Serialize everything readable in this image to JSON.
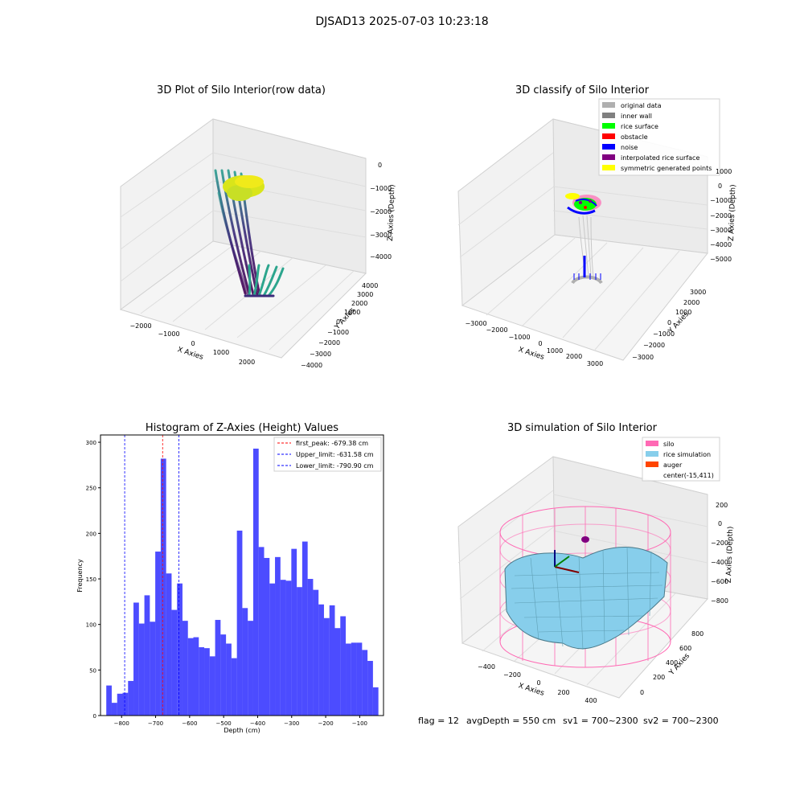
{
  "figure": {
    "suptitle": "DJSAD13 2025-07-03 10:23:18",
    "footer": {
      "flag": "flag = 12",
      "avg_depth": "avgDepth = 550 cm",
      "sv1": "sv1 = 700~2300",
      "sv2": "sv2 = 700~2300"
    }
  },
  "chart_data": [
    {
      "type": "scatter3d",
      "title": "3D Plot of Silo Interior(row data)",
      "xlabel": "X Axies",
      "ylabel": "Y Axies",
      "zlabel": "Z Axies (Depth)",
      "x_ticks": [
        "−2000",
        "−1000",
        "0",
        "1000",
        "2000"
      ],
      "y_ticks": [
        "−4000",
        "−3000",
        "−2000",
        "−1000",
        "0",
        "1000",
        "2000",
        "3000",
        "4000"
      ],
      "z_ticks": [
        "0",
        "−1000",
        "−2000",
        "−3000",
        "−4000"
      ],
      "colormap": "viridis"
    },
    {
      "type": "scatter3d",
      "title": "3D classify of Silo Interior",
      "xlabel": "X Axies",
      "ylabel": "Y Axies",
      "zlabel": "Z Axies (Depth)",
      "x_ticks": [
        "−3000",
        "−2000",
        "−1000",
        "0",
        "1000",
        "2000",
        "3000"
      ],
      "y_ticks": [
        "−3000",
        "−2000",
        "−1000",
        "0",
        "1000",
        "2000",
        "3000"
      ],
      "z_ticks": [
        "1000",
        "0",
        "−1000",
        "−2000",
        "−3000",
        "−4000",
        "−5000"
      ],
      "legend": [
        {
          "label": "original data",
          "color": "#b0b0b0"
        },
        {
          "label": "inner wall",
          "color": "#808080"
        },
        {
          "label": "rice surface",
          "color": "#00ff00"
        },
        {
          "label": "obstacle",
          "color": "#ff0000"
        },
        {
          "label": "noise",
          "color": "#0000ff"
        },
        {
          "label": "interpolated rice surface",
          "color": "#800080"
        },
        {
          "label": "symmetric generated points",
          "color": "#ffff00"
        }
      ]
    },
    {
      "type": "bar",
      "title": "Histogram of Z-Axies (Height) Values",
      "xlabel": "Depth (cm)",
      "ylabel": "Frequency",
      "color": "#0000ff",
      "bins_start": -845,
      "bin_width": 16.0,
      "values": [
        33,
        14,
        24,
        25,
        38,
        124,
        101,
        132,
        103,
        180,
        282,
        156,
        116,
        145,
        104,
        85,
        86,
        75,
        74,
        65,
        105,
        89,
        79,
        63,
        203,
        118,
        104,
        293,
        185,
        173,
        145,
        174,
        149,
        148,
        183,
        141,
        191,
        150,
        138,
        122,
        107,
        121,
        96,
        109,
        79,
        80,
        80,
        72,
        60,
        31
      ],
      "xlim": [
        -862,
        -30
      ],
      "ylim": [
        0,
        308
      ],
      "x_ticks": [
        -800,
        -700,
        -600,
        -500,
        -400,
        -300,
        -200,
        -100
      ],
      "y_ticks": [
        0,
        50,
        100,
        150,
        200,
        250,
        300
      ],
      "vlines": [
        {
          "label": "first_peak: -679.38 cm",
          "x": -679.38,
          "color": "#ff0000"
        },
        {
          "label": "Upper_limit: -631.58 cm",
          "x": -631.58,
          "color": "#0000ff"
        },
        {
          "label": "Lower_limit: -790.90 cm",
          "x": -790.9,
          "color": "#0000ff"
        }
      ]
    },
    {
      "type": "surface3d",
      "title": "3D simulation of Silo Interior",
      "xlabel": "X Axies",
      "ylabel": "Y Axies",
      "zlabel": "Z Axies (Depth)",
      "x_ticks": [
        "−400",
        "−200",
        "0",
        "200",
        "400"
      ],
      "y_ticks": [
        "0",
        "200",
        "400",
        "600",
        "800"
      ],
      "z_ticks": [
        "200",
        "0",
        "−200",
        "−400",
        "−600",
        "−800"
      ],
      "legend": [
        {
          "label": "silo",
          "color": "#ff69b4"
        },
        {
          "label": "rice simulation",
          "color": "#87ceeb"
        },
        {
          "label": "auger",
          "color": "#ff4500"
        },
        {
          "label": "center(-15,411)",
          "color": ""
        }
      ]
    }
  ]
}
